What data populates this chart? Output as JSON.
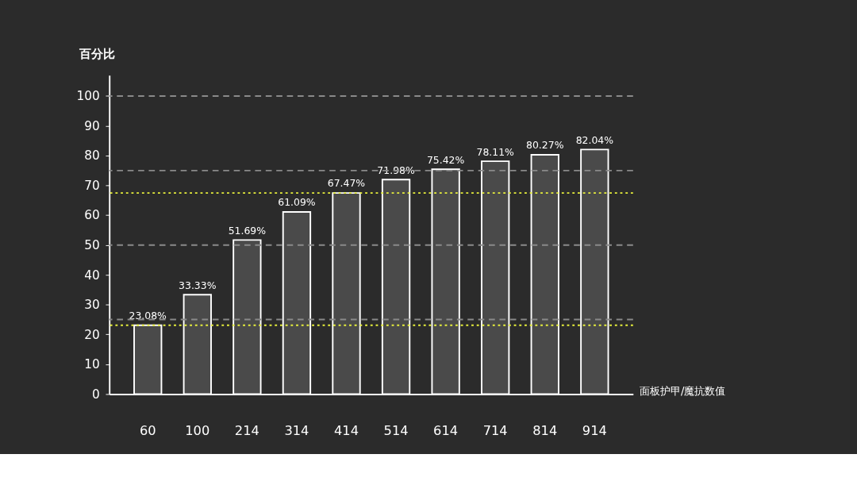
{
  "chart_data": {
    "type": "bar",
    "xlabel": "面板护甲/魔抗数值",
    "ylabel": "百分比",
    "categories": [
      "60",
      "100",
      "214",
      "314",
      "414",
      "514",
      "614",
      "714",
      "814",
      "914"
    ],
    "values": [
      23.08,
      33.33,
      51.69,
      61.09,
      67.47,
      71.98,
      75.42,
      78.11,
      80.27,
      82.04
    ],
    "value_labels": [
      "23.08%",
      "33.33%",
      "51.69%",
      "61.09%",
      "67.47%",
      "71.98%",
      "75.42%",
      "78.11%",
      "80.27%",
      "82.04%"
    ],
    "color": "#ffffff",
    "ylim": [
      0,
      107
    ],
    "yticks": [
      0,
      10,
      20,
      30,
      40,
      50,
      60,
      70,
      80,
      90,
      100
    ],
    "grid": false,
    "ref_lines": [
      {
        "axis": "y",
        "value": 25,
        "color": "#8a8a8a",
        "line_style": "dashed"
      },
      {
        "axis": "y",
        "value": 50,
        "color": "#8a8a8a",
        "line_style": "dashed"
      },
      {
        "axis": "y",
        "value": 75,
        "color": "#8a8a8a",
        "line_style": "dashed"
      },
      {
        "axis": "y",
        "value": 100,
        "color": "#8a8a8a",
        "line_style": "dashed"
      },
      {
        "axis": "y",
        "value": 67.47,
        "color": "#e8f03c",
        "line_style": "dotted"
      },
      {
        "axis": "y",
        "value": 23.08,
        "color": "#e8f03c",
        "line_style": "dotted"
      }
    ]
  }
}
